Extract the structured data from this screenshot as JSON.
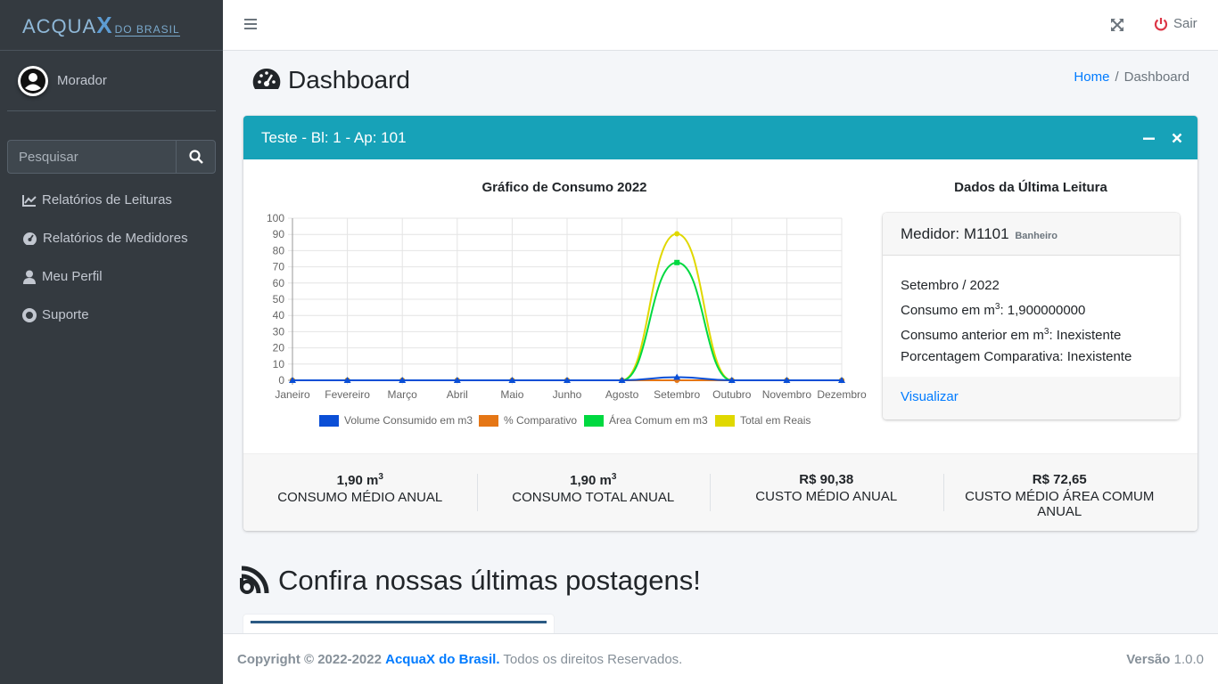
{
  "brand": {
    "logo_main": "ACQUA",
    "logo_x": "X",
    "logo_sub": "DO BRASIL"
  },
  "user": {
    "name": "Morador"
  },
  "search": {
    "placeholder": "Pesquisar"
  },
  "sidebar": {
    "items": [
      {
        "label": "Relatórios de Leituras",
        "icon": "chart-line-icon"
      },
      {
        "label": "Relatórios de Medidores",
        "icon": "gauge-icon"
      },
      {
        "label": "Meu Perfil",
        "icon": "user-icon"
      },
      {
        "label": "Suporte",
        "icon": "life-ring-icon"
      }
    ]
  },
  "topbar": {
    "logout_label": "Sair"
  },
  "page": {
    "title": "Dashboard",
    "breadcrumb_home": "Home",
    "breadcrumb_current": "Dashboard"
  },
  "card": {
    "header": "Teste - Bl: 1 - Ap: 101",
    "accent": "#17a2b8"
  },
  "chart_title": "Gráfico de Consumo 2022",
  "chart_data": {
    "type": "line",
    "title": "Gráfico de Consumo 2022",
    "categories": [
      "Janeiro",
      "Fevereiro",
      "Março",
      "Abril",
      "Maio",
      "Junho",
      "Agosto",
      "Setembro",
      "Outubro",
      "Novembro",
      "Dezembro"
    ],
    "ylim": [
      0,
      100
    ],
    "yticks": [
      0,
      10,
      20,
      30,
      40,
      50,
      60,
      70,
      80,
      90,
      100
    ],
    "grid": true,
    "legend": "bottom",
    "series": [
      {
        "name": "Volume Consumido em m3",
        "color": "#0b4fd6",
        "values": [
          0,
          0,
          0,
          0,
          0,
          0,
          0,
          1.9,
          0,
          0,
          0
        ]
      },
      {
        "name": "% Comparativo",
        "color": "#e57615",
        "values": [
          0,
          0,
          0,
          0,
          0,
          0,
          0,
          0,
          0,
          0,
          0
        ]
      },
      {
        "name": "Área Comum em m3",
        "color": "#00d940",
        "values": [
          0,
          0,
          0,
          0,
          0,
          0,
          0,
          72.65,
          0,
          0,
          0
        ]
      },
      {
        "name": "Total em Reais",
        "color": "#e0d800",
        "values": [
          0,
          0,
          0,
          0,
          0,
          0,
          0,
          90.38,
          0,
          0,
          0
        ]
      }
    ]
  },
  "last_reading": {
    "title": "Dados da Última Leitura",
    "meter_label": "Medidor: M1101",
    "meter_location": "Banheiro",
    "period": "Setembro / 2022",
    "consumo_label": "Consumo em m",
    "consumo_value": ": 1,900000000",
    "anterior_label": "Consumo anterior em m",
    "anterior_value": ": Inexistente",
    "porcentagem": "Porcentagem Comparativa: Inexistente",
    "link": "Visualizar"
  },
  "stats": [
    {
      "value": "1,90 m",
      "sup": "3",
      "label": "CONSUMO MÉDIO ANUAL"
    },
    {
      "value": "1,90 m",
      "sup": "3",
      "label": "CONSUMO TOTAL ANUAL"
    },
    {
      "value": "R$ 90,38",
      "sup": "",
      "label": "CUSTO MÉDIO ANUAL"
    },
    {
      "value": "R$ 72,65",
      "sup": "",
      "label": "CUSTO MÉDIO ÁREA COMUM ANUAL"
    }
  ],
  "posts": {
    "title": "Confira nossas últimas postagens!"
  },
  "footer": {
    "copyright": "Copyright © 2022-2022",
    "company": "AcquaX do Brasil.",
    "rights": "Todos os direitos Reservados.",
    "version_label": "Versão",
    "version": "1.0.0"
  }
}
